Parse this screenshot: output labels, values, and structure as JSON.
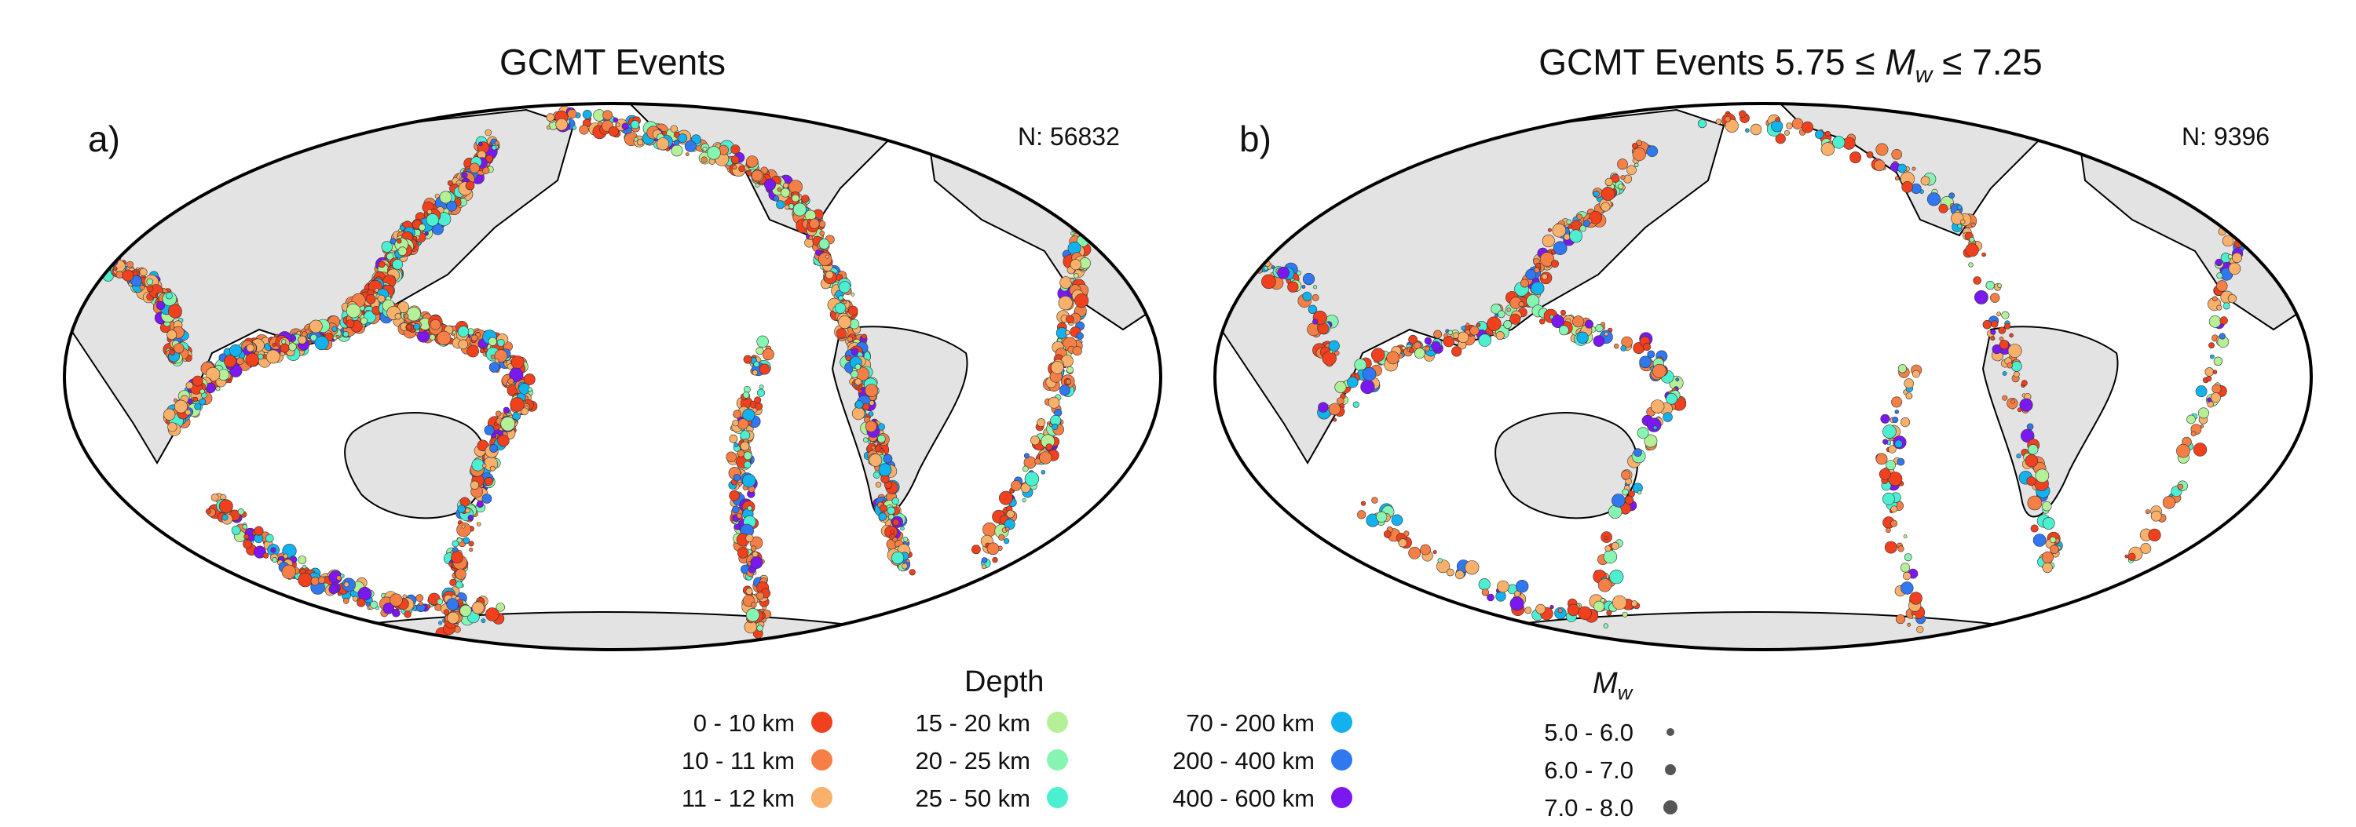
{
  "panels": [
    {
      "id": "a",
      "title": "GCMT Events",
      "label": "a)",
      "count": "N: 56832"
    },
    {
      "id": "b",
      "title_prefix": "GCMT Events 5.75 ≤",
      "title_var": "M",
      "title_sub": "w",
      "title_suffix": "≤ 7.25",
      "label": "b)",
      "count": "N: 9396"
    }
  ],
  "legend": {
    "depth_title": "Depth",
    "depth_classes": [
      {
        "label": "0 - 10 km",
        "color": "#f0401e"
      },
      {
        "label": "10 - 11 km",
        "color": "#f57f45"
      },
      {
        "label": "11 - 12 km",
        "color": "#f8b06a"
      },
      {
        "label": "15 - 20 km",
        "color": "#b4f098"
      },
      {
        "label": "20 - 25 km",
        "color": "#86f5b2"
      },
      {
        "label": "25 - 50 km",
        "color": "#4cf0d0"
      },
      {
        "label": "70 - 200 km",
        "color": "#12b2ee"
      },
      {
        "label": "200 - 400 km",
        "color": "#2f78f0"
      },
      {
        "label": "400 - 600 km",
        "color": "#7b18f0"
      }
    ],
    "mw_title": "M",
    "mw_sub": "w",
    "mw_classes": [
      {
        "label": "5.0 -  6.0",
        "size": 1
      },
      {
        "label": "6.0 -  7.0",
        "size": 2
      },
      {
        "label": "7.0 -  8.0",
        "size": 3
      }
    ]
  },
  "colors": {
    "land": "#e3e3e3",
    "ocean": "#ffffff",
    "outline": "#000000",
    "borders": "#9a9a9a"
  }
}
